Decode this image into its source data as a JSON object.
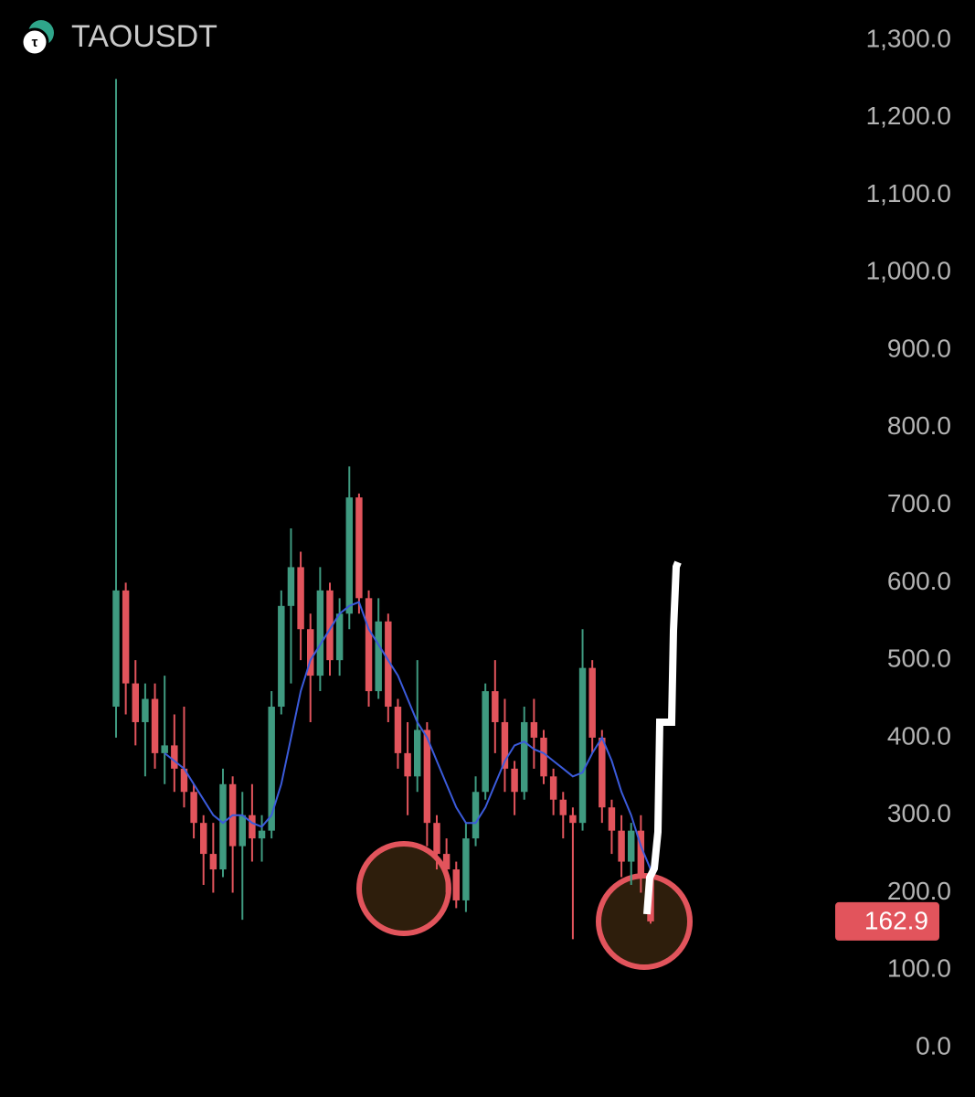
{
  "chart_data": {
    "type": "candlestick",
    "title": "TAOUSDT",
    "categories": [
      null,
      null,
      null,
      null,
      null,
      null,
      null,
      null,
      null,
      null,
      null,
      null,
      null,
      null,
      null,
      null,
      null,
      null,
      null,
      null,
      null,
      null,
      null,
      null,
      null,
      null,
      null,
      null,
      null,
      null,
      null,
      null,
      null,
      null,
      null,
      null,
      null,
      null,
      null,
      null,
      null,
      null,
      null,
      null,
      null,
      null,
      null,
      null,
      null,
      null,
      null,
      null,
      null,
      null,
      null,
      null
    ],
    "open": [
      440,
      590,
      470,
      420,
      450,
      380,
      390,
      360,
      330,
      290,
      250,
      230,
      340,
      260,
      300,
      270,
      280,
      440,
      570,
      620,
      540,
      480,
      590,
      500,
      560,
      710,
      580,
      460,
      550,
      440,
      380,
      350,
      410,
      290,
      250,
      230,
      190,
      270,
      330,
      460,
      420,
      360,
      330,
      420,
      400,
      350,
      320,
      300,
      290,
      490,
      400,
      310,
      280,
      240,
      280,
      220
    ],
    "high": [
      1250,
      600,
      500,
      470,
      470,
      480,
      430,
      440,
      340,
      300,
      290,
      360,
      350,
      330,
      340,
      300,
      460,
      590,
      670,
      640,
      560,
      620,
      600,
      580,
      750,
      715,
      590,
      580,
      560,
      450,
      420,
      500,
      420,
      300,
      270,
      240,
      290,
      350,
      470,
      500,
      450,
      370,
      440,
      450,
      410,
      360,
      330,
      310,
      540,
      500,
      410,
      320,
      300,
      290,
      300,
      230
    ],
    "low": [
      400,
      430,
      390,
      350,
      360,
      340,
      330,
      310,
      270,
      210,
      200,
      220,
      200,
      165,
      240,
      240,
      270,
      430,
      470,
      500,
      420,
      460,
      480,
      480,
      540,
      560,
      440,
      450,
      420,
      360,
      300,
      330,
      260,
      230,
      200,
      180,
      175,
      260,
      320,
      380,
      330,
      300,
      320,
      360,
      340,
      300,
      270,
      140,
      280,
      380,
      290,
      250,
      220,
      210,
      200,
      160
    ],
    "close": [
      590,
      470,
      420,
      450,
      380,
      390,
      360,
      330,
      290,
      250,
      230,
      340,
      260,
      300,
      270,
      280,
      440,
      570,
      620,
      540,
      480,
      590,
      500,
      560,
      710,
      580,
      460,
      550,
      440,
      380,
      350,
      410,
      290,
      250,
      230,
      190,
      270,
      330,
      460,
      420,
      360,
      330,
      420,
      400,
      350,
      320,
      300,
      290,
      490,
      400,
      310,
      280,
      240,
      280,
      220,
      162.9
    ],
    "ma": [
      null,
      null,
      null,
      null,
      null,
      380,
      370,
      360,
      340,
      320,
      300,
      290,
      300,
      300,
      290,
      285,
      300,
      340,
      400,
      460,
      500,
      520,
      540,
      560,
      570,
      575,
      540,
      520,
      500,
      480,
      450,
      420,
      400,
      370,
      340,
      310,
      290,
      290,
      310,
      340,
      370,
      390,
      395,
      385,
      380,
      370,
      360,
      350,
      355,
      380,
      400,
      370,
      330,
      300,
      260,
      230
    ],
    "up_color": "#3f9a80",
    "down_color": "#e2545c",
    "ma_color": "#3b5bdb",
    "last_price": 162.9,
    "ylim": [
      0,
      1300
    ],
    "yticks": [
      {
        "value": 0,
        "label": "0.0"
      },
      {
        "value": 100,
        "label": "100.0"
      },
      {
        "value": 200,
        "label": "200.0"
      },
      {
        "value": 300,
        "label": "300.0"
      },
      {
        "value": 400,
        "label": "400.0"
      },
      {
        "value": 500,
        "label": "500.0"
      },
      {
        "value": 600,
        "label": "600.0"
      },
      {
        "value": 700,
        "label": "700.0"
      },
      {
        "value": 800,
        "label": "800.0"
      },
      {
        "value": 900,
        "label": "900.0"
      },
      {
        "value": 1000,
        "label": "1,000.0"
      },
      {
        "value": 1100,
        "label": "1,100.0"
      },
      {
        "value": 1200,
        "label": "1,200.0"
      },
      {
        "value": 1300,
        "label": "1,300.0"
      }
    ]
  }
}
